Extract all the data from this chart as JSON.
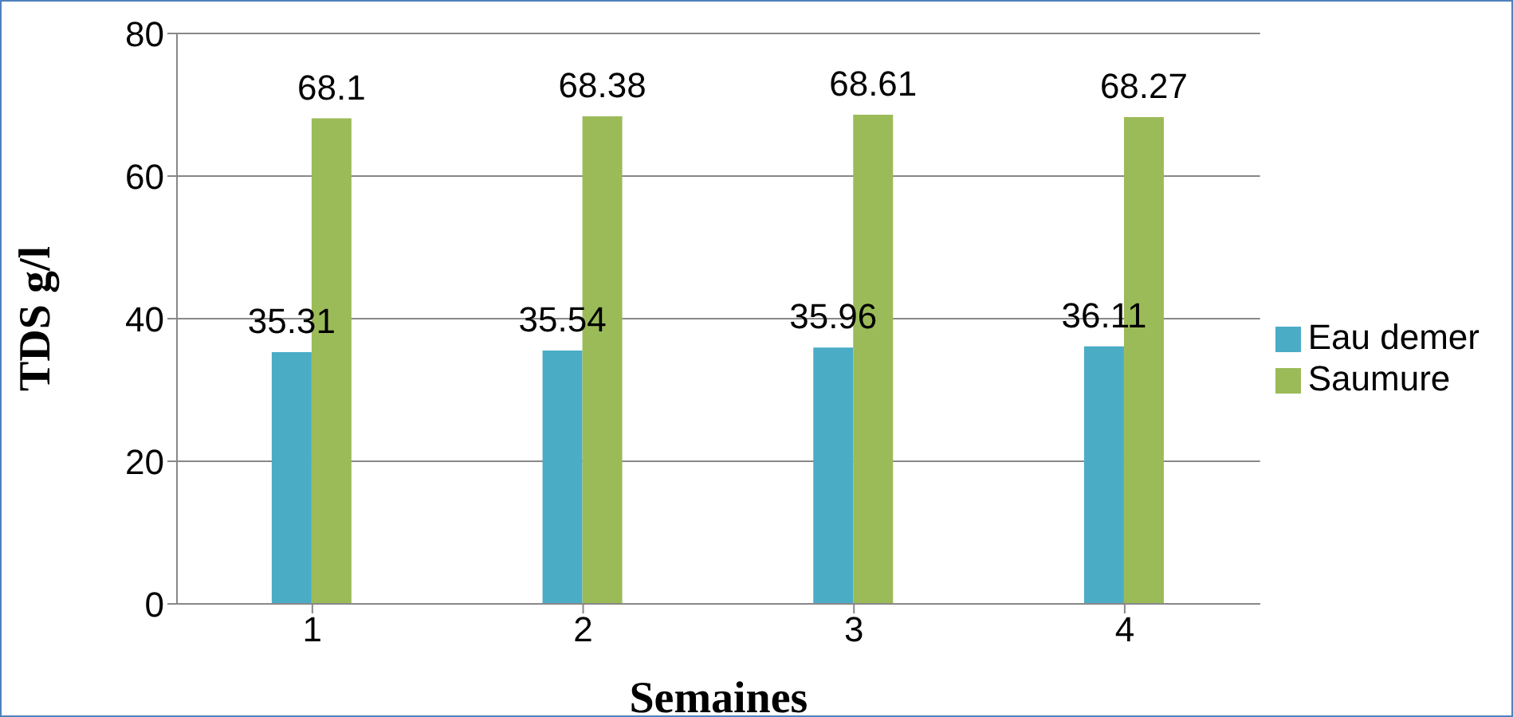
{
  "chart_data": {
    "type": "bar",
    "categories": [
      "1",
      "2",
      "3",
      "4"
    ],
    "series": [
      {
        "name": "Eau demer",
        "color": "#4bacc6",
        "values": [
          35.31,
          35.54,
          35.96,
          36.11
        ]
      },
      {
        "name": "Saumure",
        "color": "#9bbb59",
        "values": [
          68.1,
          68.38,
          68.61,
          68.27
        ]
      }
    ],
    "xlabel": "Semaines",
    "ylabel": "TDS  g/l",
    "ylim": [
      0,
      80
    ],
    "yticks": [
      0,
      20,
      40,
      60,
      80
    ],
    "grid": "y",
    "legend": "right",
    "data_labels": true
  }
}
